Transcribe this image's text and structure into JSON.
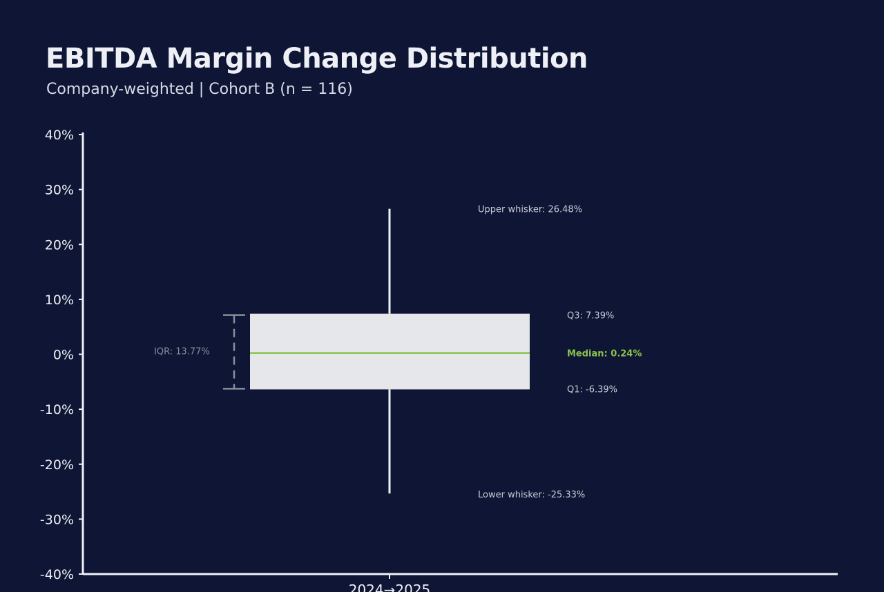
{
  "title": "EBITDA Margin Change Distribution",
  "subtitle": "Company-weighted | Cohort B (n = 116)",
  "colors": {
    "background": "#0e1535",
    "axis": "#f0f2f6",
    "box_fill": "#e6e7ea",
    "median": "#8bc34a",
    "whisker": "#f0f2f6",
    "iqr_bracket": "#8a8e99",
    "annotation": "#c9ccd4"
  },
  "chart_data": {
    "type": "box",
    "categories": [
      "2024→2025"
    ],
    "box": {
      "category": "2024→2025",
      "lower_whisker": -25.33,
      "q1": -6.39,
      "median": 0.24,
      "q3": 7.39,
      "upper_whisker": 26.48
    },
    "y_ticks": [
      40,
      30,
      20,
      10,
      0,
      -10,
      -20,
      -30,
      -40
    ],
    "y_tick_labels": [
      "40%",
      "30%",
      "20%",
      "10%",
      "0%",
      "-10%",
      "-20%",
      "-30%",
      "-40%"
    ],
    "ylim": [
      -40,
      40
    ],
    "annotations": {
      "upper_whisker": "Upper whisker: 26.48%",
      "q3": "Q3: 7.39%",
      "median": "Median: 0.24%",
      "q1": "Q1: -6.39%",
      "lower_whisker": "Lower whisker: -25.33%",
      "iqr": "IQR: 13.77%"
    },
    "grid": false,
    "legend": "none"
  }
}
